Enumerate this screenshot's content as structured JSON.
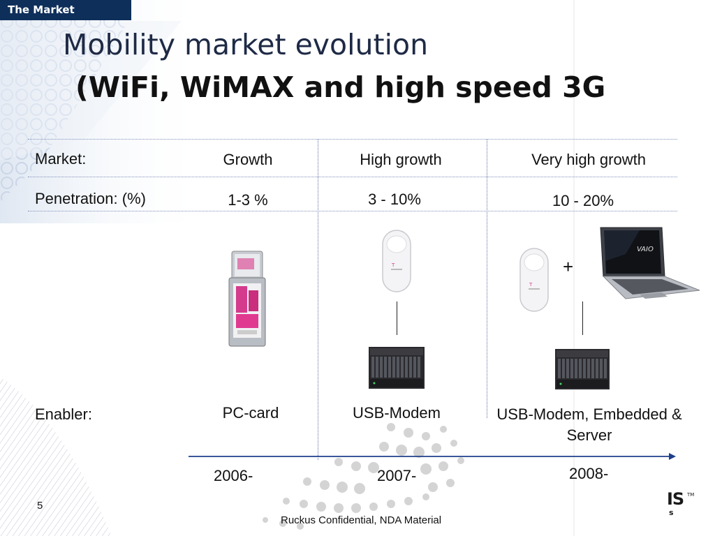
{
  "section_tab": "The Market",
  "title": {
    "line1": "Mobility market evolution",
    "line2": "(WiFi, WiMAX and high speed 3G"
  },
  "rows": {
    "market": {
      "label": "Market:",
      "values": [
        "Growth",
        "High growth",
        "Very high growth"
      ]
    },
    "penetration": {
      "label": "Penetration: (%)",
      "values": [
        "1-3 %",
        "3 - 10%",
        "10 - 20%"
      ]
    },
    "enabler": {
      "label": "Enabler:",
      "values": [
        "PC-card",
        "USB-Modem",
        "USB-Modem, Embedded & Server"
      ]
    }
  },
  "plus_sign": "+",
  "timeline": {
    "years": [
      "2006-",
      "2007-",
      "2008-"
    ]
  },
  "page_number": "5",
  "footer": "Ruckus Confidential, NDA Material",
  "logo": {
    "main": "IS",
    "tm": "TM",
    "sub": "s"
  },
  "colors": {
    "tab_background": "#0e2f5a",
    "title_text": "#1e2a45",
    "divider": "#8090b8",
    "timeline_arrow": "#1f3f8a"
  },
  "images": {
    "pc_card": "t-mobile-pc-card-image",
    "usb_modem": "t-mobile-usb-modem-image",
    "server": "blade-server-image",
    "laptop": "vaio-laptop-image"
  }
}
